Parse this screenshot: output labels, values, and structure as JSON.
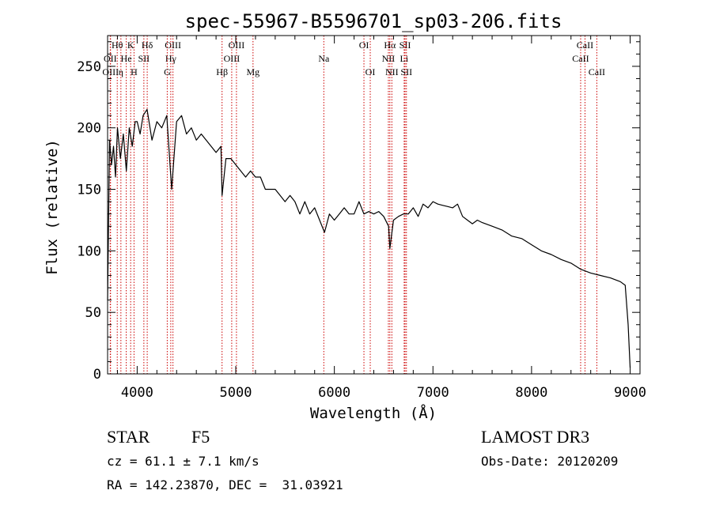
{
  "chart_data": {
    "type": "line",
    "title": "spec-55967-B5596701_sp03-206.fits",
    "xlabel": "Wavelength (Å)",
    "ylabel": "Flux (relative)",
    "xlim": [
      3700,
      9100
    ],
    "ylim": [
      0,
      275
    ],
    "x_ticks": [
      4000,
      5000,
      6000,
      7000,
      8000,
      9000
    ],
    "y_ticks": [
      0,
      50,
      100,
      150,
      200,
      250
    ],
    "grid": false,
    "series": [
      {
        "name": "flux",
        "x": [
          3700,
          3720,
          3740,
          3760,
          3780,
          3800,
          3830,
          3860,
          3890,
          3920,
          3950,
          3980,
          4000,
          4030,
          4060,
          4100,
          4150,
          4200,
          4250,
          4300,
          4350,
          4400,
          4450,
          4500,
          4550,
          4600,
          4650,
          4700,
          4750,
          4800,
          4850,
          4861,
          4900,
          4950,
          5000,
          5050,
          5100,
          5150,
          5200,
          5250,
          5300,
          5350,
          5400,
          5450,
          5500,
          5550,
          5600,
          5650,
          5700,
          5750,
          5800,
          5850,
          5900,
          5950,
          6000,
          6050,
          6100,
          6150,
          6200,
          6250,
          6300,
          6350,
          6400,
          6450,
          6500,
          6550,
          6563,
          6600,
          6650,
          6700,
          6750,
          6800,
          6850,
          6900,
          6950,
          7000,
          7050,
          7100,
          7150,
          7200,
          7250,
          7300,
          7350,
          7400,
          7450,
          7500,
          7600,
          7700,
          7800,
          7900,
          8000,
          8100,
          8200,
          8300,
          8400,
          8500,
          8600,
          8700,
          8800,
          8900,
          8950,
          8980,
          9000
        ],
        "y": [
          60,
          190,
          170,
          185,
          160,
          200,
          175,
          195,
          165,
          200,
          185,
          205,
          205,
          195,
          210,
          215,
          190,
          205,
          200,
          210,
          150,
          205,
          210,
          195,
          200,
          190,
          195,
          190,
          185,
          180,
          185,
          145,
          175,
          175,
          170,
          165,
          160,
          165,
          160,
          160,
          150,
          150,
          150,
          145,
          140,
          145,
          140,
          130,
          140,
          130,
          135,
          125,
          115,
          130,
          125,
          130,
          135,
          130,
          130,
          140,
          130,
          132,
          130,
          132,
          128,
          120,
          102,
          125,
          128,
          130,
          130,
          135,
          128,
          138,
          135,
          140,
          138,
          137,
          136,
          135,
          138,
          128,
          125,
          122,
          125,
          123,
          120,
          117,
          112,
          110,
          105,
          100,
          97,
          93,
          90,
          85,
          82,
          80,
          78,
          75,
          72,
          40,
          5
        ]
      }
    ],
    "lines": [
      {
        "label": "Hθ",
        "x": 3798,
        "row": 0
      },
      {
        "label": "OII",
        "x": 3727,
        "row": 1
      },
      {
        "label": "OIII",
        "x": 3730,
        "row": 2
      },
      {
        "label": "K",
        "x": 3934,
        "row": 0
      },
      {
        "label": "He",
        "x": 3889,
        "row": 1
      },
      {
        "label": "η",
        "x": 3835,
        "row": 2
      },
      {
        "label": "H",
        "x": 3968,
        "row": 2
      },
      {
        "label": "SII",
        "x": 4068,
        "row": 1
      },
      {
        "label": "Hδ",
        "x": 4102,
        "row": 0
      },
      {
        "label": "OIII",
        "x": 4363,
        "row": 0
      },
      {
        "label": "Hγ",
        "x": 4341,
        "row": 1
      },
      {
        "label": "G",
        "x": 4305,
        "row": 2
      },
      {
        "label": "Hβ",
        "x": 4861,
        "row": 2
      },
      {
        "label": "OIII",
        "x": 5007,
        "row": 0
      },
      {
        "label": "OIII",
        "x": 4959,
        "row": 1
      },
      {
        "label": "Mg",
        "x": 5175,
        "row": 2
      },
      {
        "label": "Na",
        "x": 5893,
        "row": 1
      },
      {
        "label": "OI",
        "x": 6300,
        "row": 0
      },
      {
        "label": "OI",
        "x": 6364,
        "row": 2
      },
      {
        "label": "Hα",
        "x": 6563,
        "row": 0
      },
      {
        "label": "NII",
        "x": 6548,
        "row": 1
      },
      {
        "label": "NII",
        "x": 6583,
        "row": 2
      },
      {
        "label": "SII",
        "x": 6717,
        "row": 0
      },
      {
        "label": "Li",
        "x": 6708,
        "row": 1
      },
      {
        "label": "SII",
        "x": 6731,
        "row": 2
      },
      {
        "label": "CaII",
        "x": 8542,
        "row": 0
      },
      {
        "label": "CaII",
        "x": 8498,
        "row": 1
      },
      {
        "label": "CaII",
        "x": 8662,
        "row": 2
      }
    ]
  },
  "info": {
    "object_class": "STAR",
    "subclass": "F5",
    "survey": "LAMOST DR3",
    "redshift": "cz = 61.1 ± 7.1 km/s",
    "obs_date": "Obs-Date: 20120209",
    "coords": "RA = 142.23870, DEC =  31.03921"
  },
  "colors": {
    "line": "#000000",
    "marker": "#cc0000",
    "axis": "#000000"
  }
}
